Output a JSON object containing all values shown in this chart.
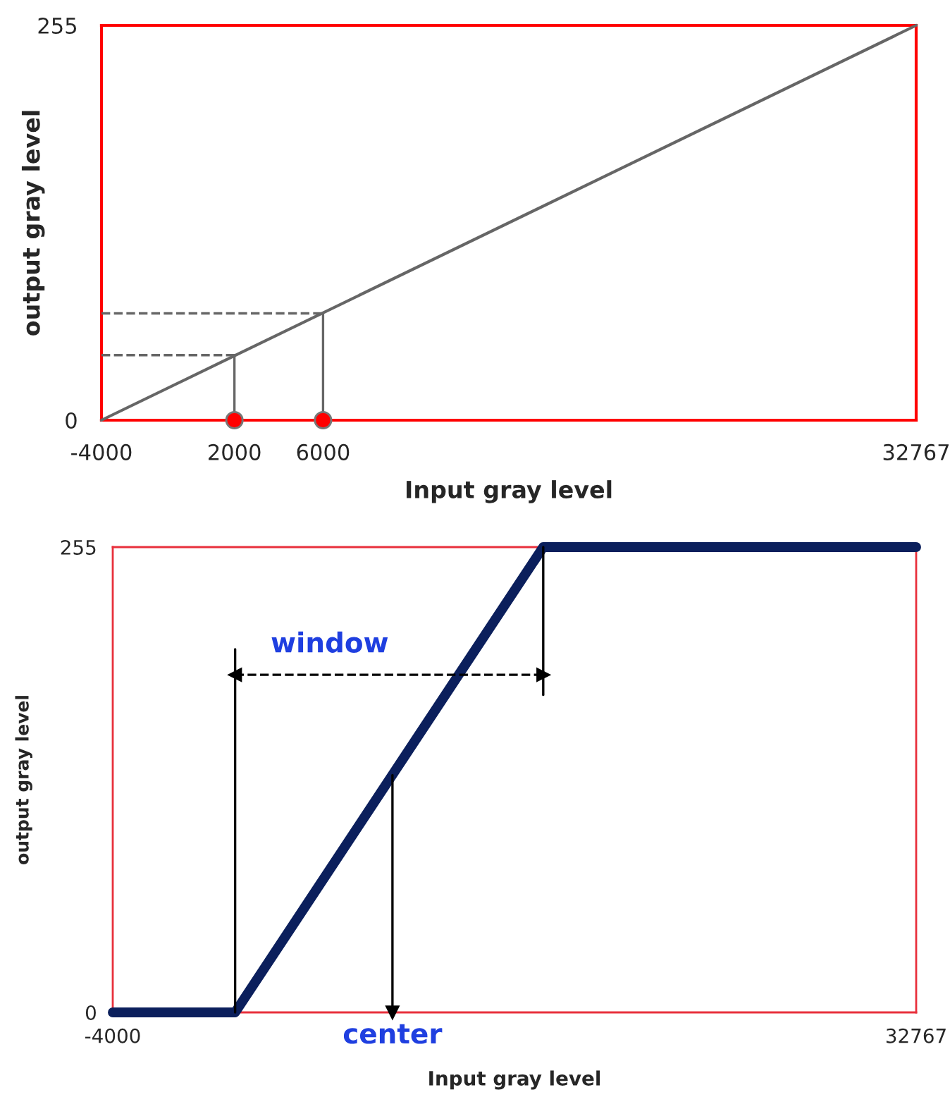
{
  "chart_data": [
    {
      "type": "line",
      "xlabel": "Input gray level",
      "ylabel": "output gray level",
      "xlim": [
        -4000,
        32767
      ],
      "ylim": [
        0,
        255
      ],
      "xticks": [
        -4000,
        2000,
        6000,
        32767
      ],
      "yticks": [
        0,
        255
      ],
      "grid": false,
      "series": [
        {
          "color": "#666666",
          "x": [
            -4000,
            32767
          ],
          "values": [
            0,
            255
          ],
          "line_style": "solid"
        },
        {
          "color": "#666666",
          "x": [
            2000,
            2000
          ],
          "values": [
            0,
            42
          ],
          "line_style": "solid"
        },
        {
          "color": "#666666",
          "x": [
            6000,
            6000
          ],
          "values": [
            0,
            69
          ],
          "line_style": "solid"
        },
        {
          "color": "#666666",
          "x": [
            -4000,
            2000
          ],
          "values": [
            42,
            42
          ],
          "line_style": "dashed"
        },
        {
          "color": "#666666",
          "x": [
            -4000,
            6000
          ],
          "values": [
            69,
            69
          ],
          "line_style": "dashed"
        },
        {
          "type": "scatter",
          "color": "#ff0000",
          "x": [
            2000,
            6000
          ],
          "values": [
            0,
            0
          ],
          "marker": "circle"
        }
      ]
    },
    {
      "type": "line",
      "xlabel": "Input gray level",
      "ylabel": "output gray level",
      "xlim": [
        -4000,
        32767
      ],
      "ylim": [
        0,
        255
      ],
      "xticks": [
        -4000,
        32767
      ],
      "yticks": [
        0,
        255
      ],
      "grid": false,
      "annotations": [
        "window",
        {
          "text": "center",
          "x": 8800,
          "y": 0
        }
      ],
      "series": [
        {
          "color": "#0b1f5c",
          "x": [
            -4000,
            1600,
            15700,
            32767
          ],
          "values": [
            0,
            0,
            255,
            255
          ],
          "line_style": "solid"
        },
        {
          "color": "#000000",
          "x": [
            1600,
            1600
          ],
          "values": [
            0,
            199
          ],
          "line_style": "solid"
        },
        {
          "color": "#000000",
          "x": [
            15700,
            15700
          ],
          "values": [
            255,
            174
          ],
          "line_style": "solid"
        },
        {
          "color": "#000000",
          "x": [
            1600,
            15700
          ],
          "values": [
            185,
            185
          ],
          "line_style": "dashed",
          "marker": "triangle"
        },
        {
          "color": "#000000",
          "x": [
            8800,
            8800
          ],
          "values": [
            130,
            0
          ],
          "line_style": "solid",
          "marker": "triangle"
        }
      ]
    }
  ]
}
